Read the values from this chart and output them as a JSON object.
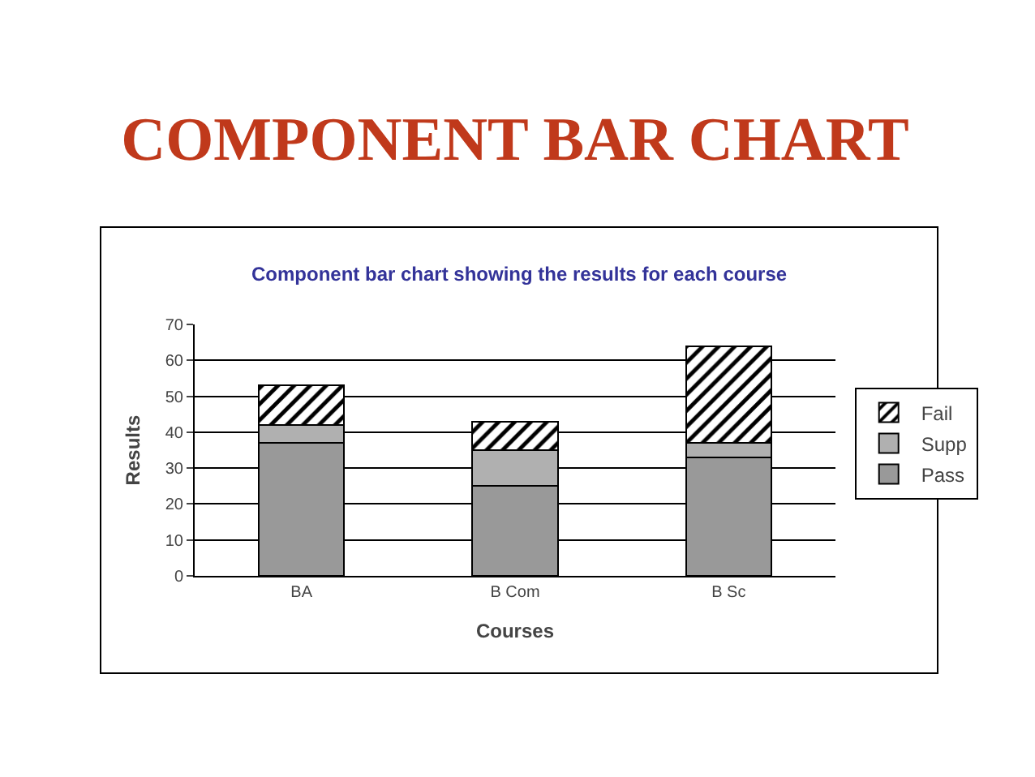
{
  "chart_data": {
    "type": "bar",
    "title": "COMPONENT BAR CHART",
    "subtitle": "Component bar chart showing the results for each course",
    "xlabel": "Courses",
    "ylabel": "Results",
    "categories": [
      "BA",
      "B Com",
      "B Sc"
    ],
    "series": [
      {
        "name": "Pass",
        "color": "#999999",
        "values": [
          37,
          25,
          33
        ]
      },
      {
        "name": "Supp",
        "color": "#b0b0b0",
        "values": [
          5,
          10,
          4
        ]
      },
      {
        "name": "Fail",
        "color": "#000000",
        "values": [
          11,
          8,
          27
        ]
      }
    ],
    "stacked": true,
    "ylim": [
      0,
      70
    ],
    "yticks": [
      0,
      10,
      20,
      30,
      40,
      50,
      60,
      70
    ],
    "grid": "y",
    "legend": "right"
  }
}
